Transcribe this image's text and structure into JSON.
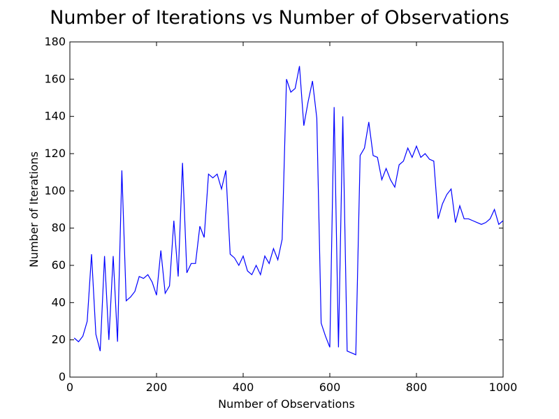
{
  "chart_data": {
    "type": "line",
    "title": "Number of Iterations vs Number of Observations",
    "xlabel": "Number of Observations",
    "ylabel": "Number of Iterations",
    "xlim": [
      0,
      1000
    ],
    "ylim": [
      0,
      180
    ],
    "x_ticks": [
      "0",
      "200",
      "400",
      "600",
      "800",
      "1000"
    ],
    "y_ticks": [
      "0",
      "20",
      "40",
      "60",
      "80",
      "100",
      "120",
      "140",
      "160",
      "180"
    ],
    "grid": false,
    "legend": "none",
    "colors": {
      "series": "#0000ff",
      "axes": "#000000",
      "background": "#ffffff"
    },
    "series": [
      {
        "x": [
          10,
          20,
          30,
          40,
          50,
          60,
          70,
          80,
          90,
          100,
          110,
          120,
          130,
          140,
          150,
          160,
          170,
          180,
          190,
          200,
          210,
          220,
          230,
          240,
          250,
          260,
          270,
          280,
          290,
          300,
          310,
          320,
          330,
          340,
          350,
          360,
          370,
          380,
          390,
          400,
          410,
          420,
          430,
          440,
          450,
          460,
          470,
          480,
          490,
          500,
          510,
          520,
          530,
          540,
          550,
          560,
          570,
          580,
          590,
          600,
          610,
          620,
          630,
          640,
          650,
          660,
          670,
          680,
          690,
          700,
          710,
          720,
          730,
          740,
          750,
          760,
          770,
          780,
          790,
          800,
          810,
          820,
          830,
          840,
          850,
          860,
          870,
          880,
          890,
          900,
          910,
          920,
          930,
          940,
          950,
          960,
          970,
          980,
          990,
          1000
        ],
        "values": [
          21,
          19,
          22,
          30,
          66,
          23,
          14,
          65,
          20,
          65,
          19,
          111,
          41,
          43,
          46,
          54,
          53,
          55,
          51,
          44,
          68,
          45,
          49,
          84,
          54,
          115,
          56,
          61,
          61,
          81,
          75,
          109,
          107,
          109,
          101,
          111,
          66,
          64,
          60,
          65,
          57,
          55,
          60,
          55,
          65,
          61,
          69,
          63,
          74,
          160,
          153,
          155,
          167,
          135,
          148,
          159,
          139,
          29,
          22,
          16,
          145,
          16,
          140,
          14,
          13,
          12,
          119,
          123,
          137,
          119,
          118,
          106,
          112,
          106,
          102,
          114,
          116,
          123,
          118,
          124,
          118,
          120,
          117,
          116,
          85,
          93,
          98,
          101,
          83,
          92,
          85,
          85,
          84,
          83,
          82,
          83,
          85,
          90,
          82,
          84
        ]
      }
    ]
  }
}
